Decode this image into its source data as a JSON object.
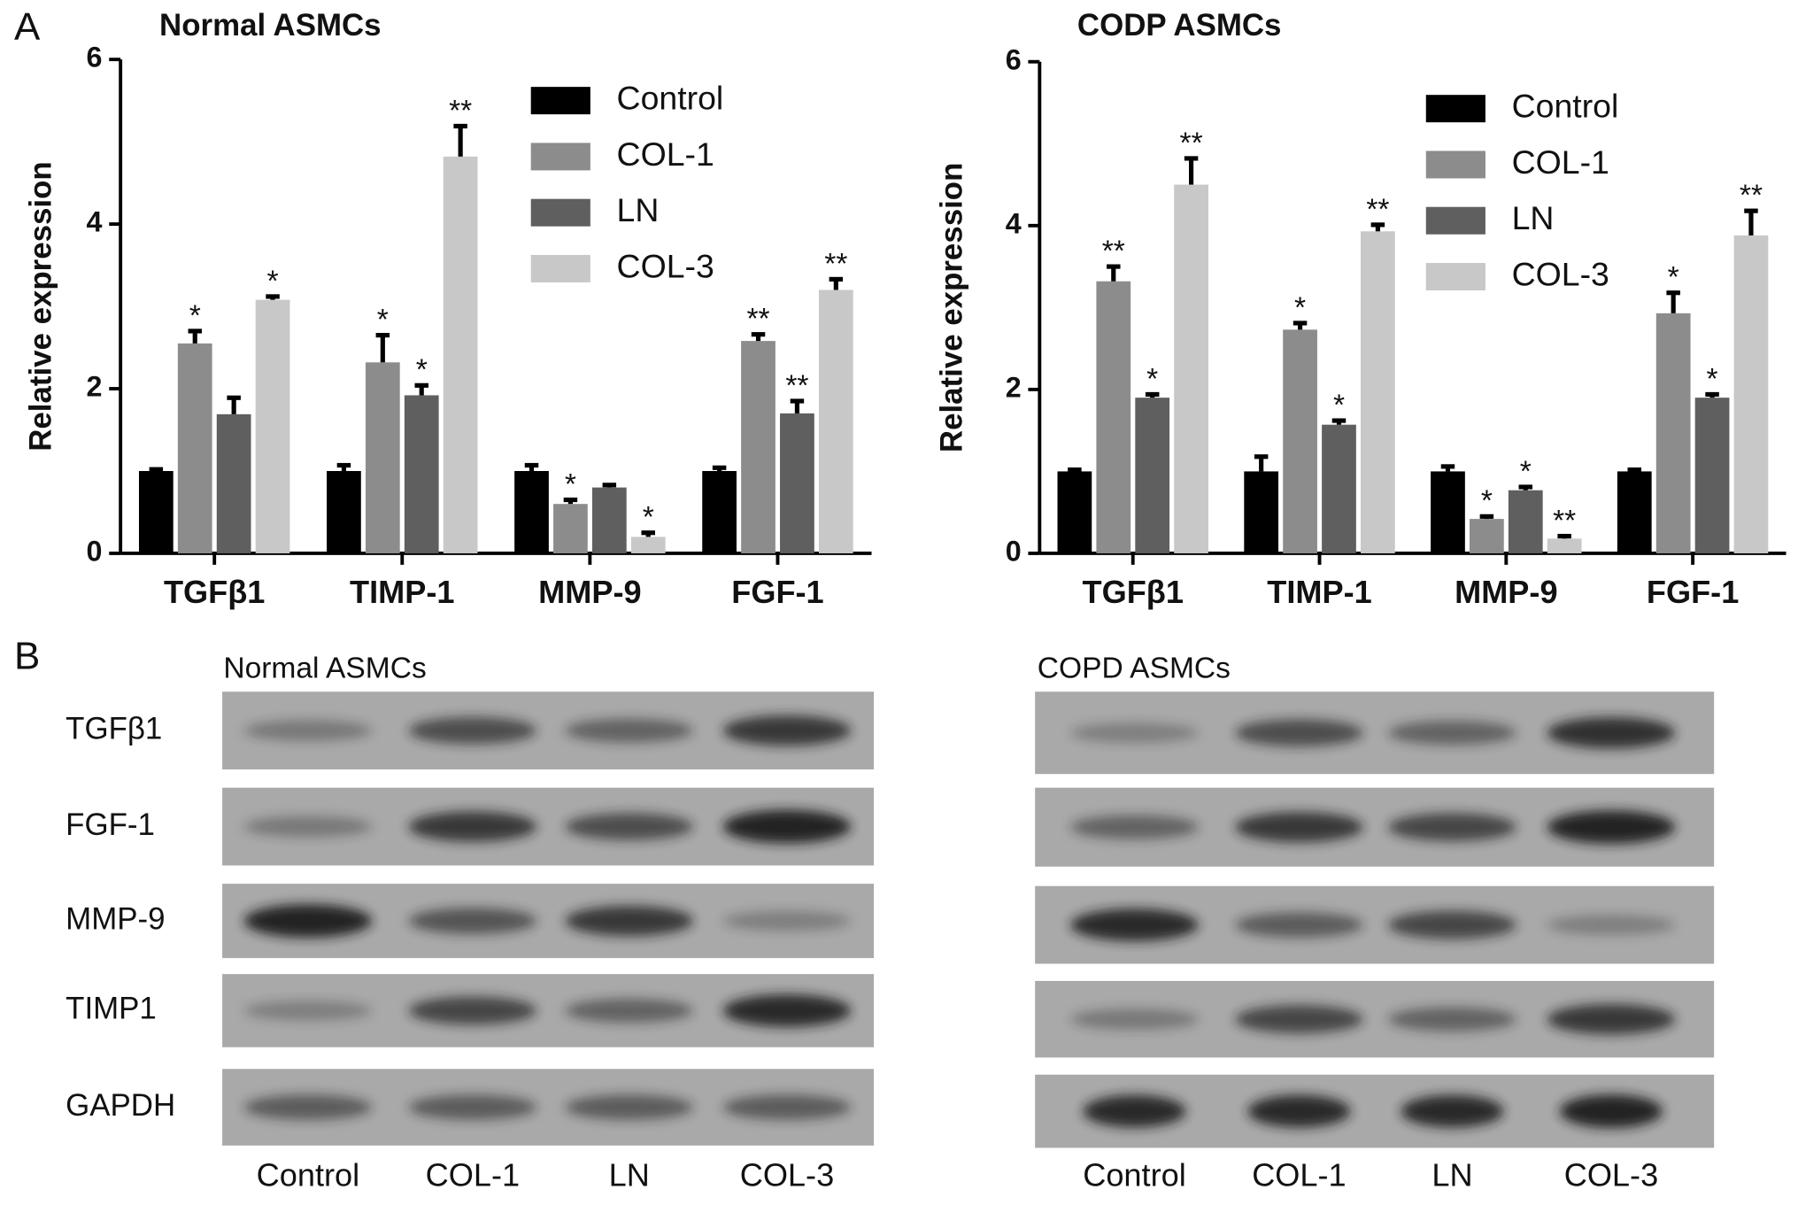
{
  "chart_data": [
    {
      "type": "bar",
      "title": "Normal ASMCs",
      "y_label": "Relative expression",
      "categories": [
        "TGFβ1",
        "TIMP-1",
        "MMP-9",
        "FGF-1"
      ],
      "series": [
        {
          "name": "Control",
          "color": "#000000",
          "values": [
            1.0,
            1.0,
            1.0,
            1.0
          ],
          "errors": [
            0.02,
            0.07,
            0.07,
            0.04
          ],
          "sig": [
            null,
            null,
            null,
            null
          ]
        },
        {
          "name": "COL-1",
          "color": "#8c8c8c",
          "values": [
            2.55,
            2.32,
            0.6,
            2.58
          ],
          "errors": [
            0.15,
            0.33,
            0.05,
            0.08
          ],
          "sig": [
            "*",
            "*",
            "*",
            "**"
          ]
        },
        {
          "name": "LN",
          "color": "#5f5f5f",
          "values": [
            1.69,
            1.92,
            0.8,
            1.7
          ],
          "errors": [
            0.2,
            0.12,
            0.03,
            0.15
          ],
          "sig": [
            null,
            "*",
            null,
            "**"
          ]
        },
        {
          "name": "COL-3",
          "color": "#c8c8c8",
          "values": [
            3.08,
            4.82,
            0.2,
            3.2
          ],
          "errors": [
            0.04,
            0.37,
            0.05,
            0.13
          ],
          "sig": [
            "*",
            "**",
            "*",
            "**"
          ]
        }
      ],
      "ylim": [
        0,
        6
      ],
      "yticks": [
        0,
        2,
        4,
        6
      ],
      "legend": "top-right"
    },
    {
      "type": "bar",
      "title": "CODP ASMCs",
      "y_label": "Relative expression",
      "categories": [
        "TGFβ1",
        "TIMP-1",
        "MMP-9",
        "FGF-1"
      ],
      "series": [
        {
          "name": "Control",
          "color": "#000000",
          "values": [
            1.0,
            1.0,
            1.0,
            1.0
          ],
          "errors": [
            0.02,
            0.18,
            0.06,
            0.02
          ],
          "sig": [
            null,
            null,
            null,
            null
          ]
        },
        {
          "name": "COL-1",
          "color": "#8c8c8c",
          "values": [
            3.32,
            2.73,
            0.42,
            2.93
          ],
          "errors": [
            0.18,
            0.08,
            0.03,
            0.25
          ],
          "sig": [
            "**",
            "*",
            "*",
            "*"
          ]
        },
        {
          "name": "LN",
          "color": "#5f5f5f",
          "values": [
            1.9,
            1.57,
            0.77,
            1.9
          ],
          "errors": [
            0.04,
            0.05,
            0.04,
            0.04
          ],
          "sig": [
            "*",
            "*",
            "*",
            "*"
          ]
        },
        {
          "name": "COL-3",
          "color": "#c8c8c8",
          "values": [
            4.5,
            3.93,
            0.18,
            3.88
          ],
          "errors": [
            0.32,
            0.08,
            0.03,
            0.3
          ],
          "sig": [
            "**",
            "**",
            "**",
            "**"
          ]
        }
      ],
      "ylim": [
        0,
        6
      ],
      "yticks": [
        0,
        2,
        4,
        6
      ],
      "legend": "top-right"
    }
  ],
  "panel_a_label": "A",
  "blots": {
    "label": "B",
    "panels": [
      {
        "title": "Normal ASMCs",
        "rows": [
          "TGFβ1",
          "FGF-1",
          "MMP-9",
          "TIMP1",
          "GAPDH"
        ],
        "columns": [
          "Control",
          "COL-1",
          "LN",
          "COL-3"
        ]
      },
      {
        "title": "COPD ASMCs",
        "columns": [
          "Control",
          "COL-1",
          "LN",
          "COL-3"
        ]
      }
    ]
  }
}
